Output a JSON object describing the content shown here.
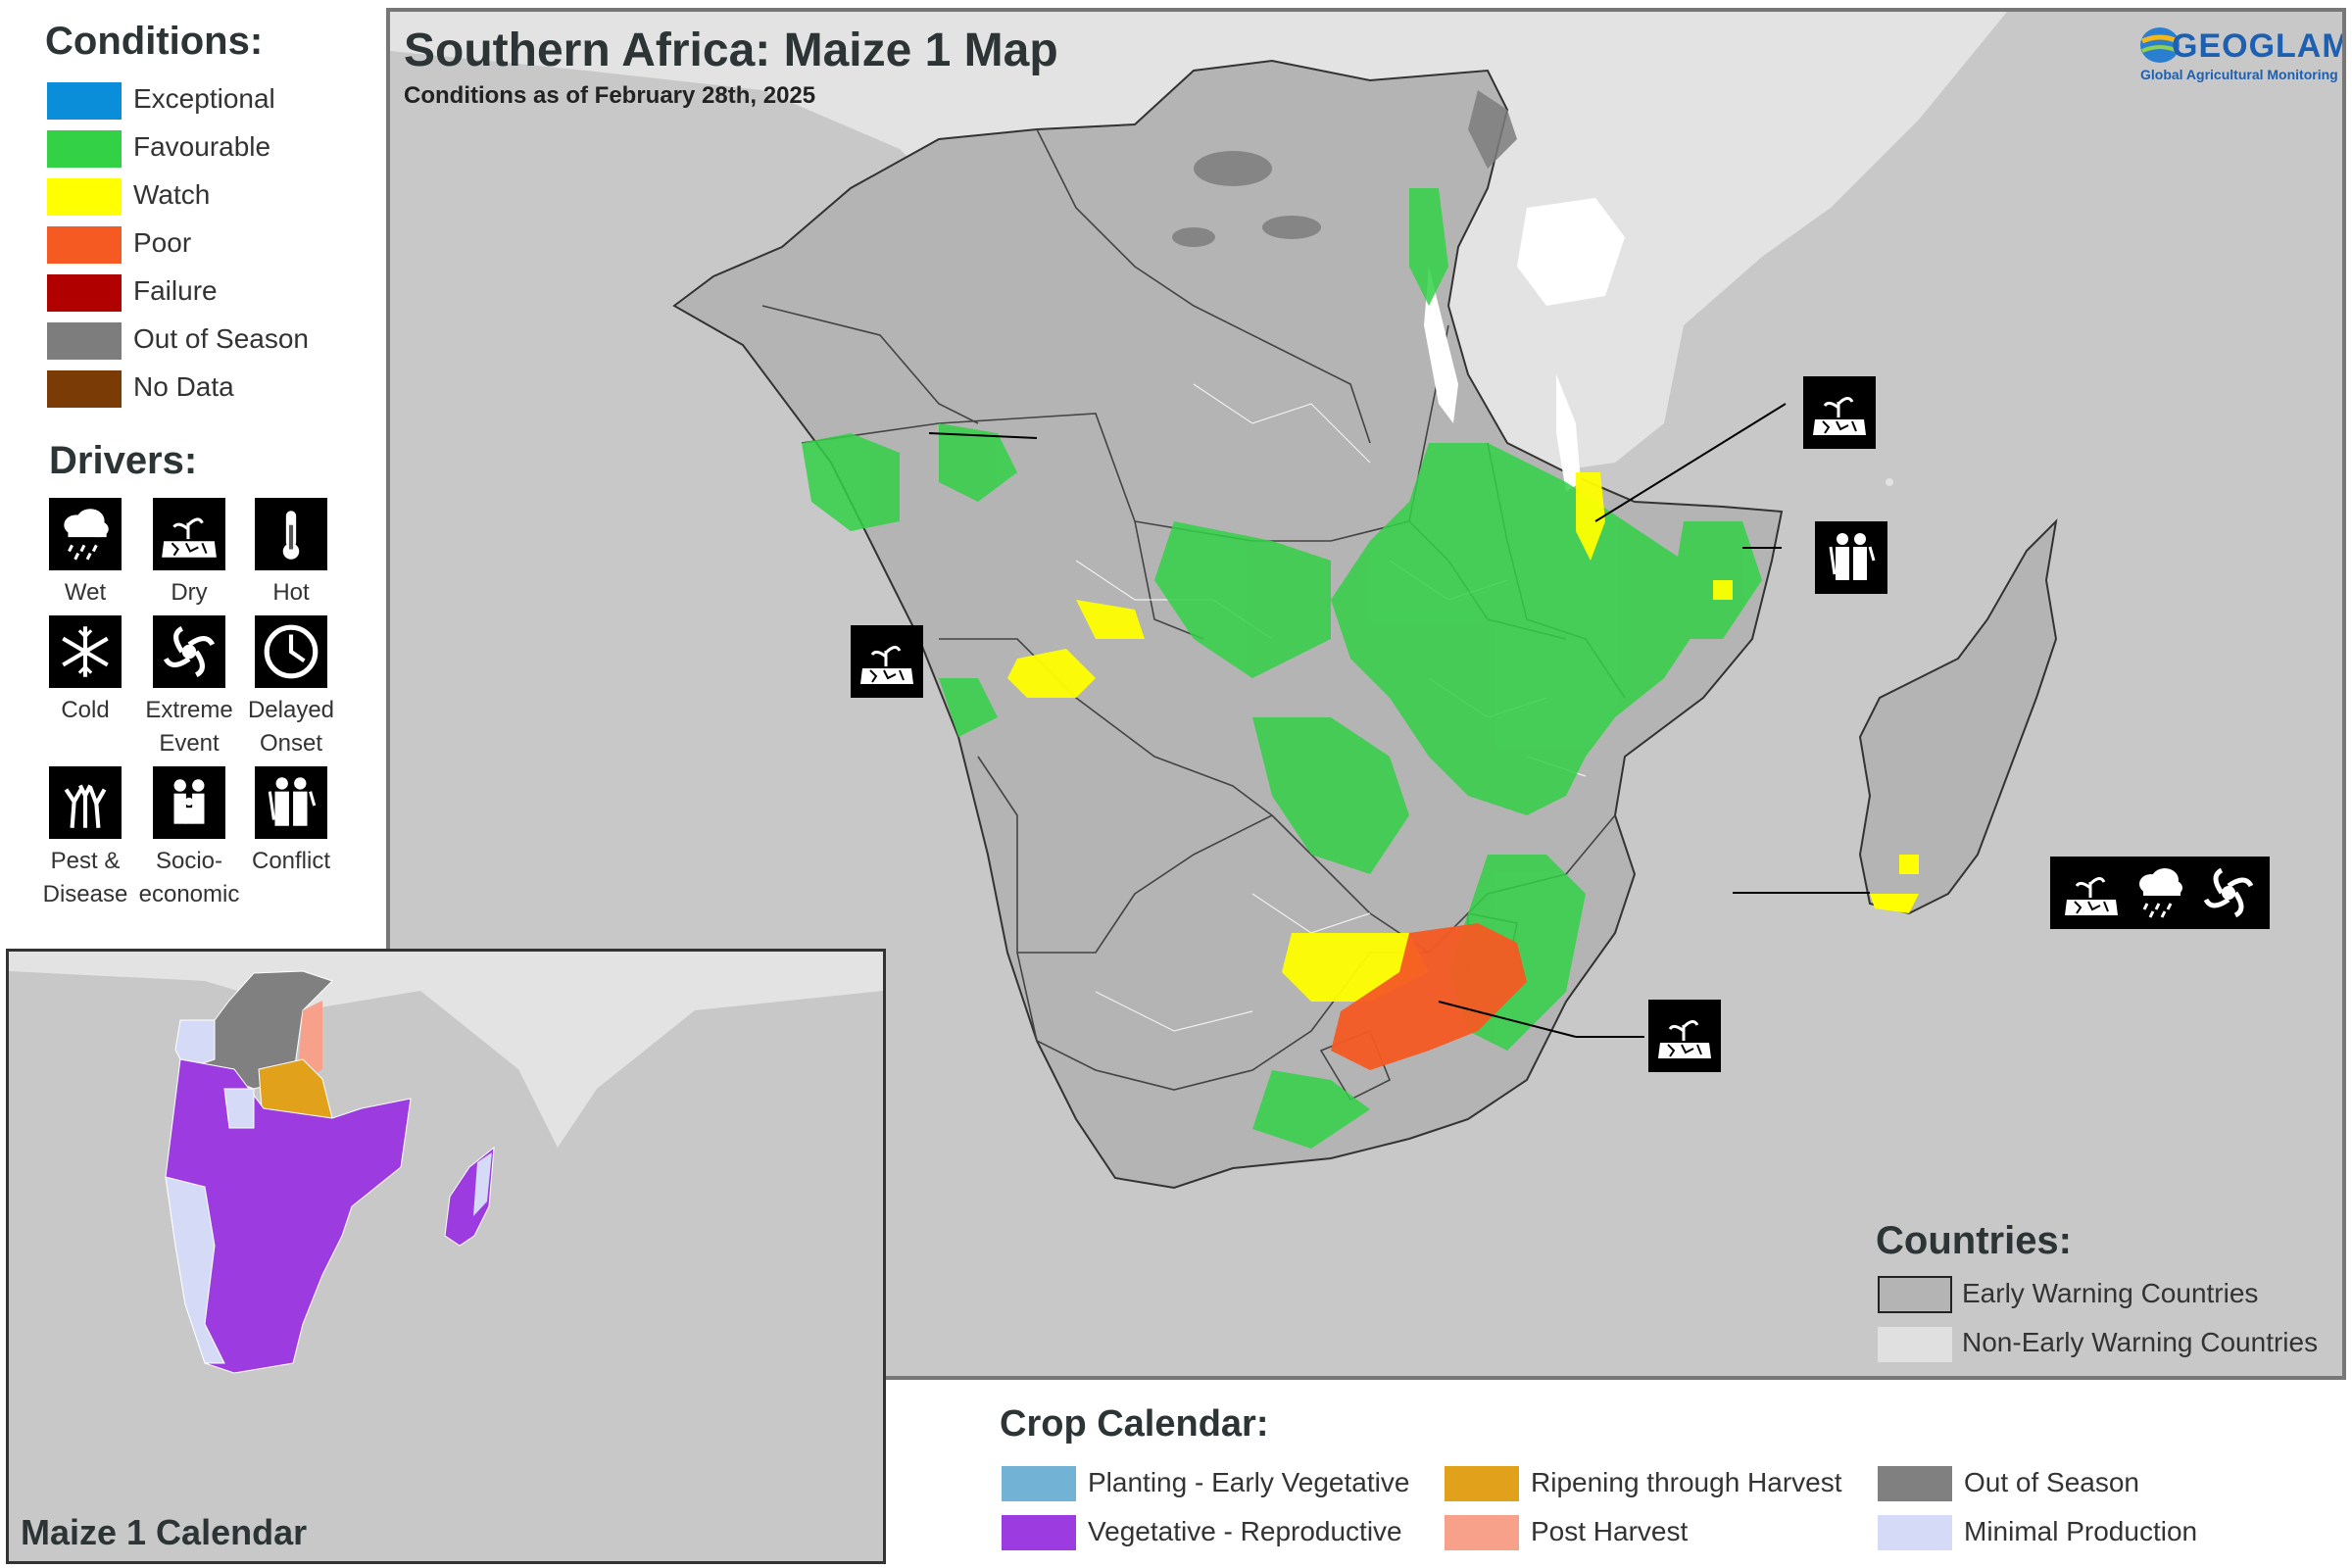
{
  "legend": {
    "conditions_title": "Conditions:",
    "conditions": [
      {
        "label": "Exceptional",
        "color": "#0a8ed9"
      },
      {
        "label": "Favourable",
        "color": "#33d146"
      },
      {
        "label": "Watch",
        "color": "#ffff00"
      },
      {
        "label": "Poor",
        "color": "#f55a23"
      },
      {
        "label": "Failure",
        "color": "#b00000"
      },
      {
        "label": "Out of Season",
        "color": "#7d7d7d"
      },
      {
        "label": "No Data",
        "color": "#7b3b06"
      }
    ],
    "drivers_title": "Drivers:",
    "drivers": [
      {
        "label1": "Wet",
        "label2": "",
        "icon": "rain-cloud-icon"
      },
      {
        "label1": "Dry",
        "label2": "",
        "icon": "dry-plant-icon"
      },
      {
        "label1": "Hot",
        "label2": "",
        "icon": "thermometer-icon"
      },
      {
        "label1": "Cold",
        "label2": "",
        "icon": "snowflake-icon"
      },
      {
        "label1": "Extreme",
        "label2": "Event",
        "icon": "cyclone-icon"
      },
      {
        "label1": "Delayed",
        "label2": "Onset",
        "icon": "clock-icon"
      },
      {
        "label1": "Pest &",
        "label2": "Disease",
        "icon": "bare-tree-icon"
      },
      {
        "label1": "Socio-",
        "label2": "economic",
        "icon": "family-icon"
      },
      {
        "label1": "Conflict",
        "label2": "",
        "icon": "soldiers-icon"
      }
    ]
  },
  "map": {
    "title": "Southern Africa: Maize 1 Map",
    "subtitle": "Conditions as of February 28th, 2025",
    "logo_name": "GEOGLAM",
    "logo_tagline": "Global Agricultural Monitoring",
    "colors": {
      "ocean": "#c8c8c8",
      "ewc": "#b4b4b4",
      "non_ewc": "#e3e3e3"
    }
  },
  "countries_legend": {
    "title": "Countries:",
    "items": [
      {
        "label": "Early Warning Countries",
        "color": "#b4b4b4"
      },
      {
        "label": "Non-Early Warning Countries",
        "color": "#e0e0e0"
      }
    ]
  },
  "crop_calendar": {
    "title": "Crop Calendar:",
    "items": [
      {
        "label": "Planting - Early Vegetative",
        "color": "#72b2d4"
      },
      {
        "label": "Ripening through Harvest",
        "color": "#e2a11b"
      },
      {
        "label": "Out of Season",
        "color": "#808080"
      },
      {
        "label": "Vegetative - Reproductive",
        "color": "#9b3be0"
      },
      {
        "label": "Post Harvest",
        "color": "#f7a08a"
      },
      {
        "label": "Minimal Production",
        "color": "#d5daf7"
      }
    ]
  },
  "inset": {
    "title": "Maize 1 Calendar"
  }
}
